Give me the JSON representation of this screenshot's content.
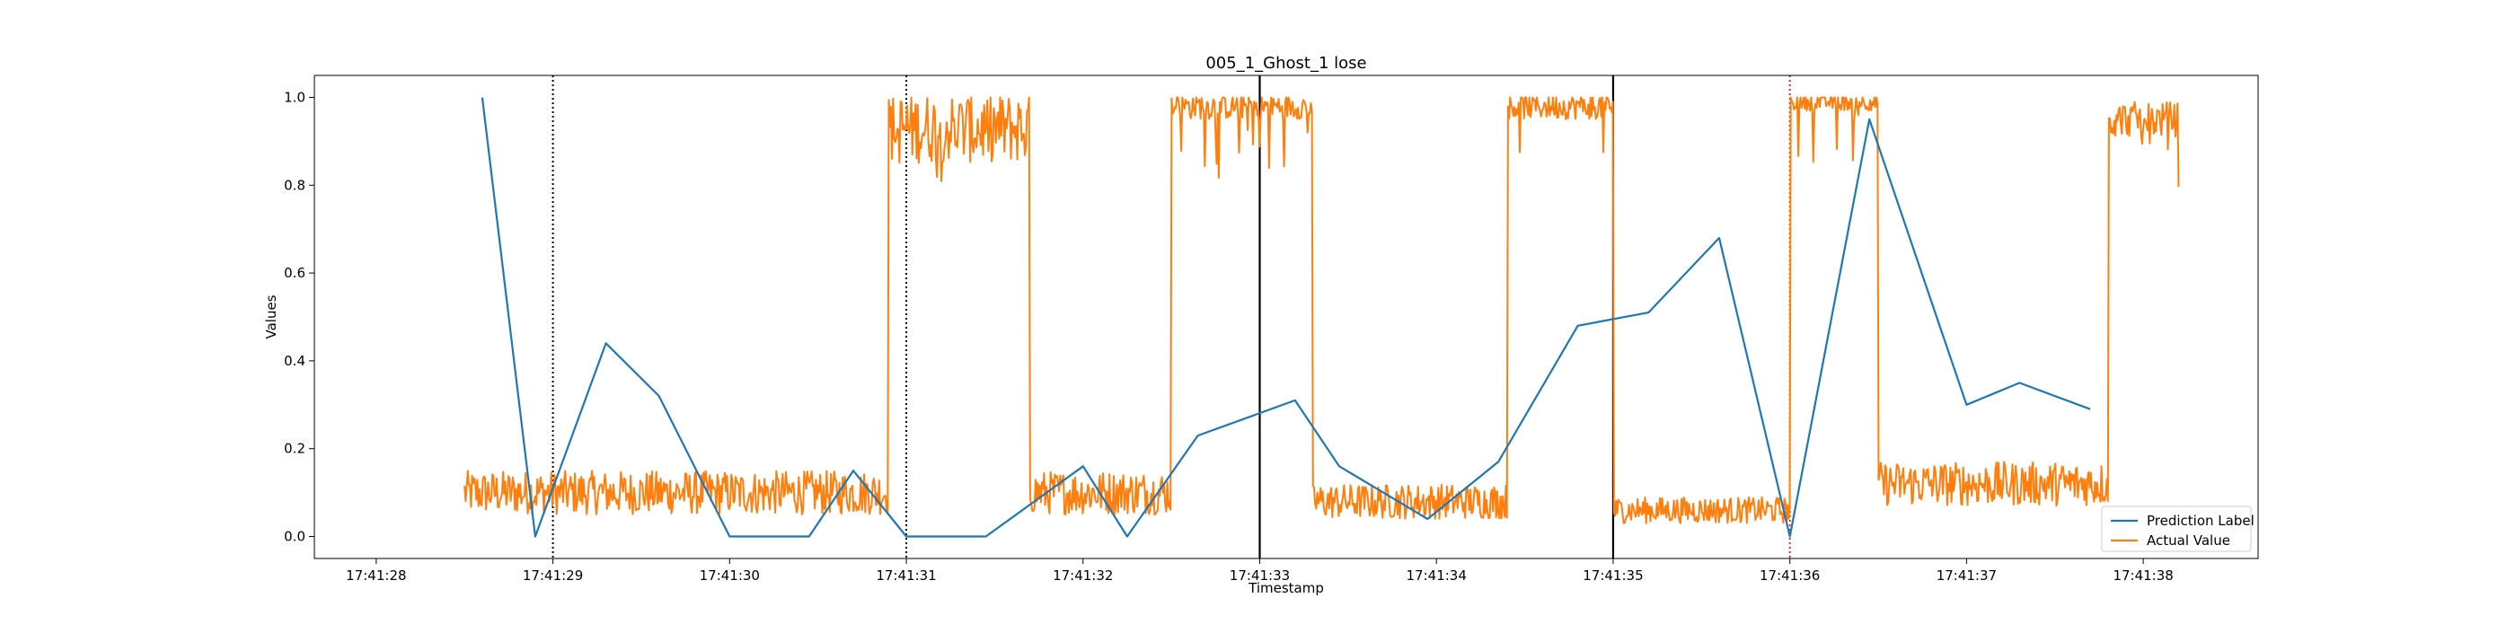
{
  "chart_data": {
    "type": "line",
    "title": "005_1_Ghost_1 lose",
    "xlabel": "Timestamp",
    "ylabel": "Values",
    "x_tick_labels": [
      "17:41:28",
      "17:41:29",
      "17:41:30",
      "17:41:31",
      "17:41:32",
      "17:41:33",
      "17:41:34",
      "17:41:35",
      "17:41:36",
      "17:41:37",
      "17:41:38"
    ],
    "x_range": [
      "17:41:27.65",
      "17:41:38.65"
    ],
    "ylim": [
      -0.05,
      1.05
    ],
    "y_ticks": [
      0.0,
      0.2,
      0.4,
      0.6,
      0.8,
      1.0
    ],
    "y_tick_labels": [
      "0.0",
      "0.2",
      "0.4",
      "0.6",
      "0.8",
      "1.0"
    ],
    "grid": false,
    "legend_position": "lower-right",
    "vertical_lines": [
      {
        "x": "17:41:29.00",
        "style": "dotted",
        "color": "#000000"
      },
      {
        "x": "17:41:31.00",
        "style": "dotted",
        "color": "#000000"
      },
      {
        "x": "17:41:33.00",
        "style": "solid",
        "color": "#000000"
      },
      {
        "x": "17:41:35.00",
        "style": "solid",
        "color": "#000000"
      },
      {
        "x": "17:41:36.00",
        "style": "dotted",
        "color": "#d62728"
      }
    ],
    "series": [
      {
        "name": "Prediction Label",
        "color": "#1f77b4",
        "points": [
          {
            "x": "17:41:28.60",
            "y": 1.0
          },
          {
            "x": "17:41:28.90",
            "y": 0.0
          },
          {
            "x": "17:41:29.30",
            "y": 0.44
          },
          {
            "x": "17:41:29.60",
            "y": 0.32
          },
          {
            "x": "17:41:30.00",
            "y": 0.0
          },
          {
            "x": "17:41:30.45",
            "y": 0.0
          },
          {
            "x": "17:41:30.70",
            "y": 0.15
          },
          {
            "x": "17:41:31.00",
            "y": 0.0
          },
          {
            "x": "17:41:31.45",
            "y": 0.0
          },
          {
            "x": "17:41:32.00",
            "y": 0.16
          },
          {
            "x": "17:41:32.25",
            "y": 0.0
          },
          {
            "x": "17:41:32.65",
            "y": 0.23
          },
          {
            "x": "17:41:33.20",
            "y": 0.31
          },
          {
            "x": "17:41:33.45",
            "y": 0.16
          },
          {
            "x": "17:41:33.95",
            "y": 0.04
          },
          {
            "x": "17:41:34.35",
            "y": 0.17
          },
          {
            "x": "17:41:34.80",
            "y": 0.48
          },
          {
            "x": "17:41:35.20",
            "y": 0.51
          },
          {
            "x": "17:41:35.60",
            "y": 0.68
          },
          {
            "x": "17:41:36.00",
            "y": 0.0
          },
          {
            "x": "17:41:36.45",
            "y": 0.95
          },
          {
            "x": "17:41:37.00",
            "y": 0.3
          },
          {
            "x": "17:41:37.30",
            "y": 0.35
          },
          {
            "x": "17:41:37.70",
            "y": 0.29
          }
        ]
      },
      {
        "name": "Actual Value",
        "color": "#ff7f0e",
        "sampling": "dense noisy signal; level segments approximated",
        "x_start": "17:41:28.50",
        "x_end": "17:41:38.20",
        "levels": [
          {
            "from": "17:41:28.50",
            "to": "17:41:30.90",
            "level": 0.1,
            "noise": 0.05
          },
          {
            "from": "17:41:30.90",
            "to": "17:41:31.70",
            "level": 0.93,
            "noise": 0.08
          },
          {
            "from": "17:41:31.70",
            "to": "17:41:32.50",
            "level": 0.1,
            "noise": 0.05
          },
          {
            "from": "17:41:32.50",
            "to": "17:41:33.30",
            "level": 0.98,
            "noise": 0.03
          },
          {
            "from": "17:41:33.30",
            "to": "17:41:34.40",
            "level": 0.08,
            "noise": 0.04
          },
          {
            "from": "17:41:34.40",
            "to": "17:41:35.00",
            "level": 0.98,
            "noise": 0.03
          },
          {
            "from": "17:41:35.00",
            "to": "17:41:36.00",
            "level": 0.06,
            "noise": 0.03
          },
          {
            "from": "17:41:36.00",
            "to": "17:41:36.50",
            "level": 0.99,
            "noise": 0.02
          },
          {
            "from": "17:41:36.50",
            "to": "17:41:37.80",
            "level": 0.12,
            "noise": 0.05
          },
          {
            "from": "17:41:37.80",
            "to": "17:41:38.20",
            "level": 0.95,
            "noise": 0.04
          }
        ]
      }
    ]
  }
}
